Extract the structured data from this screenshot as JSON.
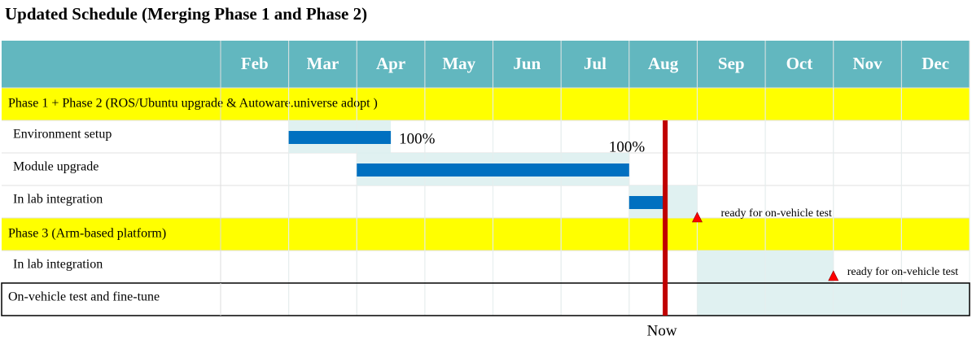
{
  "chart_data": {
    "type": "gantt",
    "title": "Updated Schedule (Merging Phase 1 and Phase 2)",
    "categories": [
      "Feb",
      "Mar",
      "Apr",
      "May",
      "Jun",
      "Jul",
      "Aug",
      "Sep",
      "Oct",
      "Nov",
      "Dec"
    ],
    "xlim": [
      0,
      11
    ],
    "now": {
      "label": "Now",
      "value": 6.53
    },
    "rows": [
      {
        "label": "Phase 1 + Phase 2 (ROS/Ubuntu upgrade & Autoware.universe adopt )",
        "kind": "phase"
      },
      {
        "label": "Environment setup",
        "kind": "task",
        "plan": [
          1,
          2.5
        ],
        "done": [
          1,
          2.5
        ],
        "progress": 100,
        "progress_label": "100%"
      },
      {
        "label": "Module upgrade",
        "kind": "task",
        "plan": [
          2,
          6
        ],
        "done": [
          2,
          6
        ],
        "progress": 100,
        "progress_label": "100%"
      },
      {
        "label": "In lab integration",
        "kind": "task",
        "plan": [
          6,
          7
        ],
        "done": [
          6,
          6.53
        ],
        "milestone": {
          "at": 7,
          "label": "ready for on-vehicle test"
        }
      },
      {
        "label": "Phase 3 (Arm-based platform)",
        "kind": "phase"
      },
      {
        "label": "In lab integration",
        "kind": "task",
        "plan": [
          7,
          9
        ],
        "milestone": {
          "at": 9,
          "label": "ready for on-vehicle test"
        }
      },
      {
        "label": "On-vehicle test and fine-tune",
        "kind": "task",
        "plan": [
          7,
          11
        ]
      }
    ]
  }
}
